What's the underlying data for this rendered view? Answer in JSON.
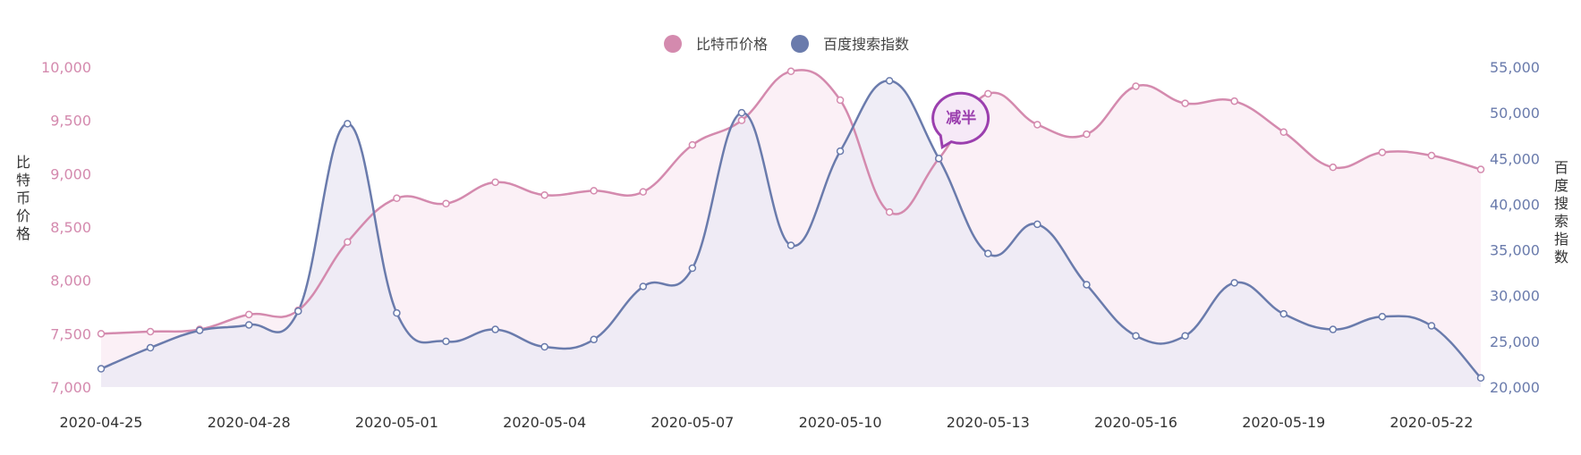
{
  "chart_data": {
    "type": "line",
    "x": [
      "2020-04-25",
      "2020-04-26",
      "2020-04-27",
      "2020-04-28",
      "2020-04-29",
      "2020-04-30",
      "2020-05-01",
      "2020-05-02",
      "2020-05-03",
      "2020-05-04",
      "2020-05-05",
      "2020-05-06",
      "2020-05-07",
      "2020-05-08",
      "2020-05-09",
      "2020-05-10",
      "2020-05-11",
      "2020-05-12",
      "2020-05-13",
      "2020-05-14",
      "2020-05-15",
      "2020-05-16",
      "2020-05-17",
      "2020-05-18",
      "2020-05-19",
      "2020-05-20",
      "2020-05-21",
      "2020-05-22",
      "2020-05-23"
    ],
    "x_tick_labels": [
      "2020-04-25",
      "2020-04-28",
      "2020-05-01",
      "2020-05-04",
      "2020-05-07",
      "2020-05-10",
      "2020-05-13",
      "2020-05-16",
      "2020-05-19",
      "2020-05-22"
    ],
    "series": [
      {
        "name": "比特币价格",
        "axis": "left",
        "color": "#d48aae",
        "fill": "#fbf0f6",
        "values": [
          7500,
          7520,
          7540,
          7680,
          7720,
          8360,
          8770,
          8720,
          8920,
          8800,
          8840,
          8830,
          9270,
          9500,
          9960,
          9690,
          8640,
          9140,
          9750,
          9460,
          9370,
          9820,
          9660,
          9680,
          9390,
          9060,
          9200,
          9170,
          9040
        ]
      },
      {
        "name": "百度搜索指数",
        "axis": "right",
        "color": "#6a7bac",
        "fill": "#eceaf4",
        "values": [
          22000,
          24300,
          26200,
          26800,
          28300,
          48800,
          28100,
          25000,
          26300,
          24400,
          25200,
          31000,
          33000,
          50000,
          35500,
          45800,
          53500,
          45000,
          34600,
          37800,
          31200,
          25600,
          25600,
          31400,
          28000,
          26300,
          27700,
          26700,
          21000
        ]
      }
    ],
    "y_left": {
      "label": "比特币价格",
      "min": 7000,
      "max": 10000,
      "ticks": [
        "7,000",
        "7,500",
        "8,000",
        "8,500",
        "9,000",
        "9,500",
        "10,000"
      ],
      "color": "#d48aae"
    },
    "y_right": {
      "label": "百度搜索指数",
      "min": 20000,
      "max": 55000,
      "ticks": [
        "20,000",
        "25,000",
        "30,000",
        "35,000",
        "40,000",
        "45,000",
        "50,000",
        "55,000"
      ],
      "color": "#6a7bac"
    },
    "legend": {
      "position": "top-center",
      "items": [
        "比特币价格",
        "百度搜索指数"
      ]
    },
    "annotation": {
      "text": "减半",
      "x": "2020-05-12",
      "series": "比特币价格",
      "color": "#9b3fae"
    },
    "grid": false
  }
}
